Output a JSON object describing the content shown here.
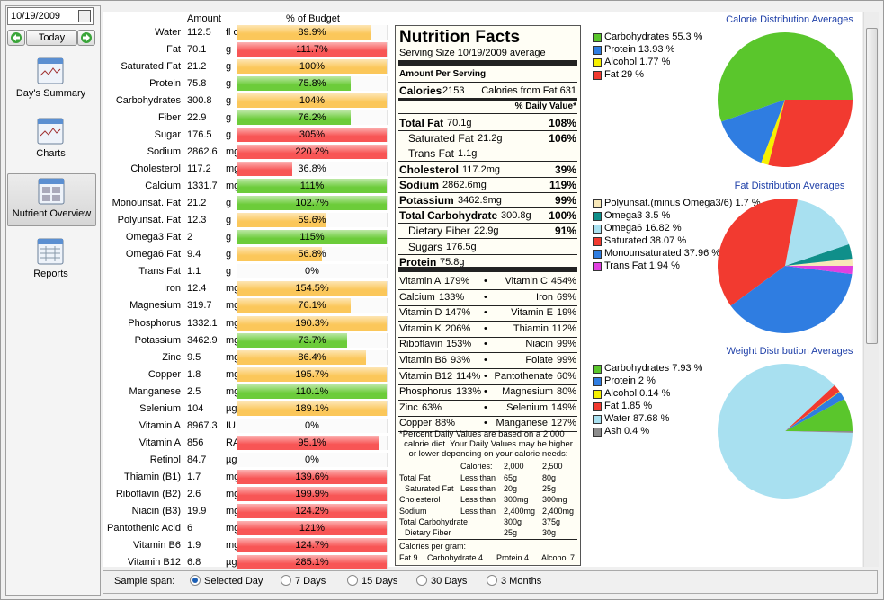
{
  "sidebar": {
    "date": "10/19/2009",
    "today": "Today",
    "nav": [
      "Day's Summary",
      "Charts",
      "Nutrient Overview",
      "Reports"
    ],
    "selected": 2
  },
  "table": {
    "headers": [
      "Amount",
      "% of Budget"
    ],
    "bar_max": 100,
    "rows": [
      {
        "name": "Water",
        "amount": 112.5,
        "unit": "fl oz",
        "percent": 89.9,
        "percent_label": "89.9%",
        "bar_color": "#fbc75a"
      },
      {
        "name": "Fat",
        "amount": 70.1,
        "unit": "g",
        "percent": 111.7,
        "percent_label": "111.7%",
        "bar_color": "#f85555"
      },
      {
        "name": "Saturated Fat",
        "amount": 21.2,
        "unit": "g",
        "percent": 100,
        "percent_label": "100%",
        "bar_color": "#fbc75a"
      },
      {
        "name": "Protein",
        "amount": 75.8,
        "unit": "g",
        "percent": 75.8,
        "percent_label": "75.8%",
        "bar_color": "#6ccc3a"
      },
      {
        "name": "Carbohydrates",
        "amount": 300.8,
        "unit": "g",
        "percent": 104,
        "percent_label": "104%",
        "bar_color": "#fbc75a"
      },
      {
        "name": "Fiber",
        "amount": 22.9,
        "unit": "g",
        "percent": 76.2,
        "percent_label": "76.2%",
        "bar_color": "#6ccc3a"
      },
      {
        "name": "Sugar",
        "amount": 176.5,
        "unit": "g",
        "percent": 305,
        "percent_label": "305%",
        "bar_color": "#f85555"
      },
      {
        "name": "Sodium",
        "amount": 2862.6,
        "unit": "mg",
        "percent": 220.2,
        "percent_label": "220.2%",
        "bar_color": "#f85555"
      },
      {
        "name": "Cholesterol",
        "amount": 117.2,
        "unit": "mg",
        "percent": 36.8,
        "percent_label": "36.8%",
        "bar_color": "#f85555"
      },
      {
        "name": "Calcium",
        "amount": 1331.7,
        "unit": "mg",
        "percent": 111,
        "percent_label": "111%",
        "bar_color": "#6ccc3a"
      },
      {
        "name": "Monounsat. Fat",
        "amount": 21.2,
        "unit": "g",
        "percent": 102.7,
        "percent_label": "102.7%",
        "bar_color": "#6ccc3a"
      },
      {
        "name": "Polyunsat. Fat",
        "amount": 12.3,
        "unit": "g",
        "percent": 59.6,
        "percent_label": "59.6%",
        "bar_color": "#fbc75a"
      },
      {
        "name": "Omega3 Fat",
        "amount": 2,
        "unit": "g",
        "percent": 115,
        "percent_label": "115%",
        "bar_color": "#6ccc3a"
      },
      {
        "name": "Omega6 Fat",
        "amount": 9.4,
        "unit": "g",
        "percent": 56.8,
        "percent_label": "56.8%",
        "bar_color": "#fbc75a"
      },
      {
        "name": "Trans Fat",
        "amount": 1.1,
        "unit": "g",
        "percent": 0,
        "percent_label": "0%",
        "bar_color": "#fbc75a"
      },
      {
        "name": "Iron",
        "amount": 12.4,
        "unit": "mg",
        "percent": 154.5,
        "percent_label": "154.5%",
        "bar_color": "#fbc75a"
      },
      {
        "name": "Magnesium",
        "amount": 319.7,
        "unit": "mg",
        "percent": 76.1,
        "percent_label": "76.1%",
        "bar_color": "#fbc75a"
      },
      {
        "name": "Phosphorus",
        "amount": 1332.1,
        "unit": "mg",
        "percent": 190.3,
        "percent_label": "190.3%",
        "bar_color": "#fbc75a"
      },
      {
        "name": "Potassium",
        "amount": 3462.9,
        "unit": "mg",
        "percent": 73.7,
        "percent_label": "73.7%",
        "bar_color": "#6ccc3a"
      },
      {
        "name": "Zinc",
        "amount": 9.5,
        "unit": "mg",
        "percent": 86.4,
        "percent_label": "86.4%",
        "bar_color": "#fbc75a"
      },
      {
        "name": "Copper",
        "amount": 1.8,
        "unit": "mg",
        "percent": 195.7,
        "percent_label": "195.7%",
        "bar_color": "#fbc75a"
      },
      {
        "name": "Manganese",
        "amount": 2.5,
        "unit": "mg",
        "percent": 110.1,
        "percent_label": "110.1%",
        "bar_color": "#6ccc3a"
      },
      {
        "name": "Selenium",
        "amount": 104,
        "unit": "µg",
        "percent": 189.1,
        "percent_label": "189.1%",
        "bar_color": "#fbc75a"
      },
      {
        "name": "Vitamin A",
        "amount": 8967.3,
        "unit": "IU",
        "percent": 0,
        "percent_label": "0%",
        "bar_color": "#fbc75a"
      },
      {
        "name": "Vitamin A",
        "amount": 856,
        "unit": "RAE",
        "percent": 95.1,
        "percent_label": "95.1%",
        "bar_color": "#f85555"
      },
      {
        "name": "Retinol",
        "amount": 84.7,
        "unit": "µg",
        "percent": 0,
        "percent_label": "0%",
        "bar_color": "#fbc75a"
      },
      {
        "name": "Thiamin (B1)",
        "amount": 1.7,
        "unit": "mg",
        "percent": 139.6,
        "percent_label": "139.6%",
        "bar_color": "#f85555"
      },
      {
        "name": "Riboflavin (B2)",
        "amount": 2.6,
        "unit": "mg",
        "percent": 199.9,
        "percent_label": "199.9%",
        "bar_color": "#f85555"
      },
      {
        "name": "Niacin (B3)",
        "amount": 19.9,
        "unit": "mg",
        "percent": 124.2,
        "percent_label": "124.2%",
        "bar_color": "#f85555"
      },
      {
        "name": "Pantothenic Acid",
        "amount": 6,
        "unit": "mg",
        "percent": 121,
        "percent_label": "121%",
        "bar_color": "#f85555"
      },
      {
        "name": "Vitamin B6",
        "amount": 1.9,
        "unit": "mg",
        "percent": 124.7,
        "percent_label": "124.7%",
        "bar_color": "#f85555"
      },
      {
        "name": "Vitamin B12",
        "amount": 6.8,
        "unit": "µg",
        "percent": 285.1,
        "percent_label": "285.1%",
        "bar_color": "#f85555"
      }
    ]
  },
  "facts": {
    "title": "Nutrition Facts",
    "serving": "Serving Size  10/19/2009  average",
    "amount_per": "Amount Per Serving",
    "calories_label": "Calories",
    "calories": "2153",
    "calories_fat": "Calories from Fat 631",
    "dv_header": "% Daily Value*",
    "lines": [
      {
        "label": "Total Fat",
        "amount": "70.1g",
        "dv": "108%",
        "indent": false
      },
      {
        "label": "Saturated Fat",
        "amount": "21.2g",
        "dv": "106%",
        "indent": true
      },
      {
        "label": "Trans Fat",
        "amount": "1.1g",
        "indent": true
      },
      {
        "label": "Cholesterol",
        "amount": "117.2mg",
        "dv": "39%",
        "indent": false
      },
      {
        "label": "Sodium",
        "amount": "2862.6mg",
        "dv": "119%",
        "indent": false
      },
      {
        "label": "Potassium",
        "amount": "3462.9mg",
        "dv": "99%",
        "indent": false
      },
      {
        "label": "Total Carbohydrate",
        "amount": "300.8g",
        "dv": "100%",
        "indent": false
      },
      {
        "label": "Dietary Fiber",
        "amount": "22.9g",
        "dv": "91%",
        "indent": true
      },
      {
        "label": "Sugars",
        "amount": "176.5g",
        "indent": true
      },
      {
        "label": "Protein",
        "amount": "75.8g",
        "indent": false
      }
    ],
    "separator": "•",
    "vitamins": [
      [
        "Vitamin A",
        "179%",
        "Vitamin C",
        "454%"
      ],
      [
        "Calcium",
        "133%",
        "Iron",
        "69%"
      ],
      [
        "Vitamin D",
        "147%",
        "Vitamin E",
        "19%"
      ],
      [
        "Vitamin K",
        "206%",
        "Thiamin",
        "112%"
      ],
      [
        "Riboflavin",
        "153%",
        "Niacin",
        "99%"
      ],
      [
        "Vitamin B6",
        "93%",
        "Folate",
        "99%"
      ],
      [
        "Vitamin B12",
        "114%",
        "Pantothenate",
        "60%"
      ],
      [
        "Phosphorus",
        "133%",
        "Magnesium",
        "80%"
      ],
      [
        "Zinc",
        "63%",
        "Selenium",
        "149%"
      ],
      [
        "Copper",
        "88%",
        "Manganese",
        "127%"
      ]
    ],
    "footnote": [
      "*Percent Daily Values are based on a 2,000",
      "calorie diet. Your Daily Values may be higher",
      "or lower depending on your calorie needs:"
    ],
    "ref_header": [
      "Calories:",
      "2,000",
      "2,500"
    ],
    "ref_rows": [
      [
        "Total Fat",
        "Less than",
        "65g",
        "80g"
      ],
      [
        "Saturated Fat",
        "Less than",
        "20g",
        "25g"
      ],
      [
        "Cholesterol",
        "Less than",
        "300mg",
        "300mg"
      ],
      [
        "Sodium",
        "Less than",
        "2,400mg",
        "2,400mg"
      ],
      [
        "Total Carbohydrate",
        "",
        "300g",
        "375g"
      ],
      [
        "Dietary Fiber",
        "",
        "25g",
        "30g"
      ]
    ],
    "per_gram": "Calories per gram:",
    "per_gram_items": [
      "Fat 9",
      "Carbohydrate 4",
      "Protein 4",
      "Alcohol 7"
    ]
  },
  "pies": [
    {
      "type": "pie",
      "title": "Calorie Distribution Averages",
      "legend": [
        "Carbohydrates 55.3 %",
        "Protein 13.93 %",
        "Alcohol 1.77 %",
        "Fat 29 %"
      ],
      "values": [
        55.3,
        13.93,
        1.77,
        29
      ],
      "colors": [
        "#5ac62c",
        "#2f7de1",
        "#f6f000",
        "#f23a30"
      ]
    },
    {
      "type": "pie",
      "title": "Fat Distribution Averages",
      "legend": [
        "Polyunsat.(minus Omega3/6) 1.7 %",
        "Omega3 3.5 %",
        "Omega6 16.82 %",
        "Saturated 38.07 %",
        "Monounsaturated 37.96 %",
        "Trans Fat 1.94 %"
      ],
      "values": [
        1.7,
        3.5,
        16.82,
        38.07,
        37.96,
        1.94
      ],
      "colors": [
        "#f8e8b8",
        "#0f8f8a",
        "#a8e0f0",
        "#f23a30",
        "#2f7de1",
        "#e040e0"
      ]
    },
    {
      "type": "pie",
      "title": "Weight Distribution Averages",
      "legend": [
        "Carbohydrates 7.93 %",
        "Protein 2 %",
        "Alcohol 0.14 %",
        "Fat 1.85 %",
        "Water 87.68 %",
        "Ash 0.4 %"
      ],
      "values": [
        7.93,
        2,
        0.14,
        1.85,
        87.68,
        0.4
      ],
      "colors": [
        "#5ac62c",
        "#2f7de1",
        "#f6f000",
        "#f23a30",
        "#a8e0f0",
        "#8c8c8c"
      ]
    }
  ],
  "bottom": {
    "label": "Sample span:",
    "options": [
      "Selected Day",
      "7 Days",
      "15 Days",
      "30 Days",
      "3 Months"
    ],
    "selected": 0
  }
}
